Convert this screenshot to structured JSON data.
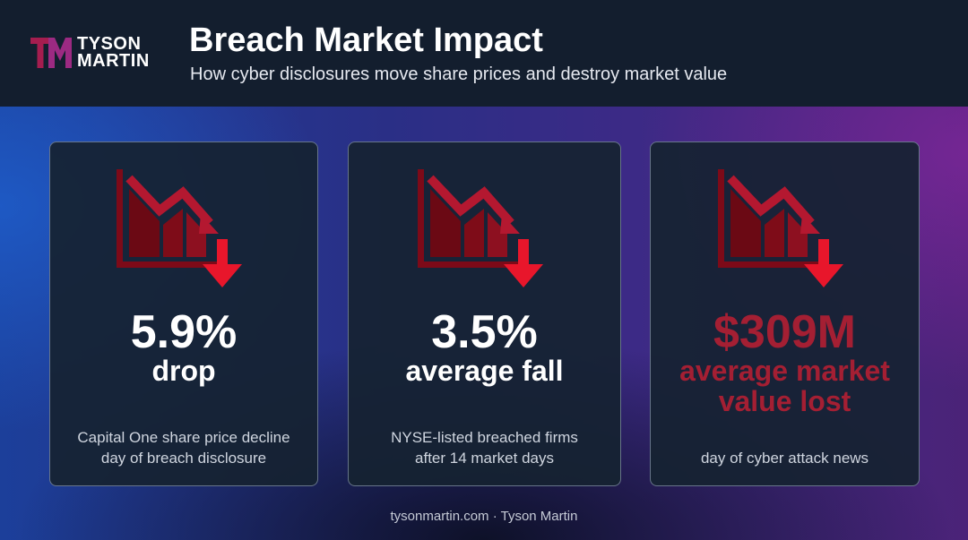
{
  "brand": {
    "logo_mark": "TM",
    "name_line1": "TYSON",
    "name_line2": "MARTIN",
    "accent_color": "#a51d4f"
  },
  "header": {
    "title": "Breach Market Impact",
    "subtitle": "How cyber disclosures move share prices and destroy market value"
  },
  "cards": [
    {
      "icon": "declining-chart-icon",
      "value": "5.9%",
      "label": "drop",
      "description": [
        "Capital One share price decline",
        "day of breach disclosure"
      ]
    },
    {
      "icon": "declining-chart-icon",
      "value": "3.5%",
      "label": "average fall",
      "description": [
        "NYSE-listed breached firms",
        "after 14 market days"
      ]
    },
    {
      "icon": "declining-chart-icon",
      "value": "$309M",
      "label": "average market value lost",
      "description": [
        "day of cyber attack news"
      ],
      "highlight_color": "#a41f33"
    }
  ],
  "footer": {
    "text": "tysonmartin.com · Tyson Martin"
  }
}
